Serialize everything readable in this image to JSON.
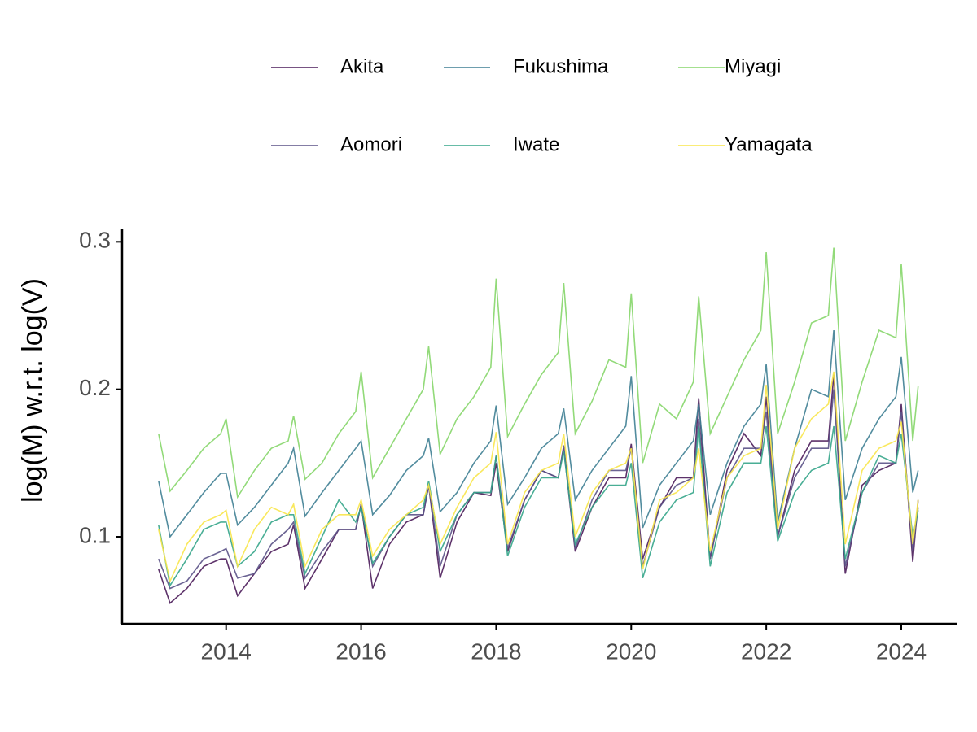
{
  "chart_data": {
    "type": "line",
    "y_label": "log(M) w.r.t. log(V)",
    "x": [
      2013,
      2013.17,
      2013.42,
      2013.67,
      2013.92,
      2014,
      2014.17,
      2014.42,
      2014.67,
      2014.92,
      2015,
      2015.17,
      2015.42,
      2015.67,
      2015.92,
      2016,
      2016.17,
      2016.42,
      2016.67,
      2016.92,
      2017,
      2017.17,
      2017.42,
      2017.67,
      2017.92,
      2018,
      2018.17,
      2018.42,
      2018.67,
      2018.92,
      2019,
      2019.17,
      2019.42,
      2019.67,
      2019.92,
      2020,
      2020.17,
      2020.42,
      2020.67,
      2020.92,
      2021,
      2021.17,
      2021.42,
      2021.67,
      2021.92,
      2022,
      2022.17,
      2022.42,
      2022.67,
      2022.92,
      2023,
      2023.17,
      2023.42,
      2023.67,
      2023.92,
      2024,
      2024.17,
      2024.25
    ],
    "series": [
      {
        "name": "Akita",
        "color": "#4b1c5a",
        "values": [
          0.078,
          0.055,
          0.065,
          0.08,
          0.085,
          0.085,
          0.06,
          0.075,
          0.09,
          0.095,
          0.108,
          0.065,
          0.085,
          0.105,
          0.105,
          0.122,
          0.065,
          0.095,
          0.11,
          0.115,
          0.135,
          0.072,
          0.11,
          0.13,
          0.128,
          0.15,
          0.09,
          0.125,
          0.145,
          0.14,
          0.16,
          0.09,
          0.12,
          0.14,
          0.14,
          0.163,
          0.085,
          0.12,
          0.14,
          0.14,
          0.194,
          0.085,
          0.145,
          0.17,
          0.155,
          0.195,
          0.1,
          0.145,
          0.165,
          0.165,
          0.21,
          0.075,
          0.135,
          0.145,
          0.15,
          0.19,
          0.083,
          0.125
        ]
      },
      {
        "name": "Aomori",
        "color": "#5b5287",
        "values": [
          0.085,
          0.065,
          0.07,
          0.085,
          0.09,
          0.092,
          0.072,
          0.075,
          0.095,
          0.105,
          0.11,
          0.072,
          0.09,
          0.105,
          0.105,
          0.122,
          0.08,
          0.1,
          0.115,
          0.115,
          0.135,
          0.08,
          0.115,
          0.13,
          0.13,
          0.155,
          0.092,
          0.125,
          0.145,
          0.14,
          0.162,
          0.092,
          0.125,
          0.145,
          0.145,
          0.16,
          0.08,
          0.12,
          0.135,
          0.14,
          0.18,
          0.085,
          0.14,
          0.16,
          0.16,
          0.185,
          0.1,
          0.14,
          0.16,
          0.16,
          0.2,
          0.08,
          0.13,
          0.15,
          0.15,
          0.185,
          0.09,
          0.12
        ]
      },
      {
        "name": "Fukushima",
        "color": "#3f7f93",
        "values": [
          0.138,
          0.1,
          0.115,
          0.13,
          0.143,
          0.143,
          0.108,
          0.12,
          0.135,
          0.15,
          0.16,
          0.114,
          0.13,
          0.145,
          0.16,
          0.165,
          0.115,
          0.128,
          0.145,
          0.155,
          0.167,
          0.117,
          0.13,
          0.15,
          0.165,
          0.189,
          0.122,
          0.14,
          0.16,
          0.17,
          0.187,
          0.125,
          0.145,
          0.16,
          0.175,
          0.209,
          0.106,
          0.135,
          0.15,
          0.165,
          0.19,
          0.115,
          0.15,
          0.175,
          0.19,
          0.217,
          0.11,
          0.16,
          0.2,
          0.195,
          0.24,
          0.125,
          0.16,
          0.18,
          0.195,
          0.222,
          0.13,
          0.145
        ]
      },
      {
        "name": "Iwate",
        "color": "#35a58a",
        "values": [
          0.108,
          0.067,
          0.085,
          0.105,
          0.11,
          0.11,
          0.08,
          0.09,
          0.11,
          0.115,
          0.115,
          0.075,
          0.1,
          0.125,
          0.11,
          0.12,
          0.082,
          0.1,
          0.115,
          0.12,
          0.138,
          0.09,
          0.115,
          0.13,
          0.13,
          0.155,
          0.087,
          0.12,
          0.14,
          0.14,
          0.158,
          0.095,
          0.12,
          0.135,
          0.135,
          0.15,
          0.072,
          0.11,
          0.125,
          0.13,
          0.175,
          0.08,
          0.13,
          0.15,
          0.15,
          0.175,
          0.097,
          0.13,
          0.145,
          0.15,
          0.175,
          0.085,
          0.13,
          0.155,
          0.15,
          0.17,
          0.1,
          0.118
        ]
      },
      {
        "name": "Miyagi",
        "color": "#86d66a",
        "values": [
          0.17,
          0.131,
          0.145,
          0.16,
          0.17,
          0.18,
          0.127,
          0.145,
          0.16,
          0.165,
          0.182,
          0.139,
          0.15,
          0.17,
          0.185,
          0.212,
          0.14,
          0.16,
          0.18,
          0.2,
          0.229,
          0.156,
          0.18,
          0.195,
          0.215,
          0.275,
          0.168,
          0.19,
          0.21,
          0.225,
          0.272,
          0.17,
          0.192,
          0.22,
          0.215,
          0.265,
          0.15,
          0.19,
          0.18,
          0.205,
          0.263,
          0.17,
          0.195,
          0.22,
          0.24,
          0.293,
          0.17,
          0.205,
          0.245,
          0.25,
          0.296,
          0.165,
          0.205,
          0.24,
          0.235,
          0.285,
          0.165,
          0.202
        ]
      },
      {
        "name": "Yamagata",
        "color": "#f8e64a",
        "values": [
          0.105,
          0.07,
          0.095,
          0.11,
          0.115,
          0.118,
          0.08,
          0.105,
          0.12,
          0.115,
          0.122,
          0.08,
          0.105,
          0.115,
          0.115,
          0.125,
          0.087,
          0.105,
          0.115,
          0.125,
          0.135,
          0.095,
          0.12,
          0.14,
          0.15,
          0.171,
          0.095,
          0.13,
          0.145,
          0.15,
          0.17,
          0.1,
          0.13,
          0.145,
          0.15,
          0.16,
          0.078,
          0.125,
          0.13,
          0.14,
          0.16,
          0.09,
          0.14,
          0.155,
          0.16,
          0.203,
          0.105,
          0.16,
          0.18,
          0.19,
          0.212,
          0.095,
          0.145,
          0.16,
          0.165,
          0.178,
          0.095,
          0.125
        ]
      }
    ],
    "xlim": [
      2012.46,
      2024.82
    ],
    "xticks": [
      2014,
      2016,
      2018,
      2020,
      2022,
      2024
    ],
    "ylim": [
      0.041,
      0.309
    ],
    "yticks": [
      0.1,
      0.2,
      0.3
    ]
  }
}
